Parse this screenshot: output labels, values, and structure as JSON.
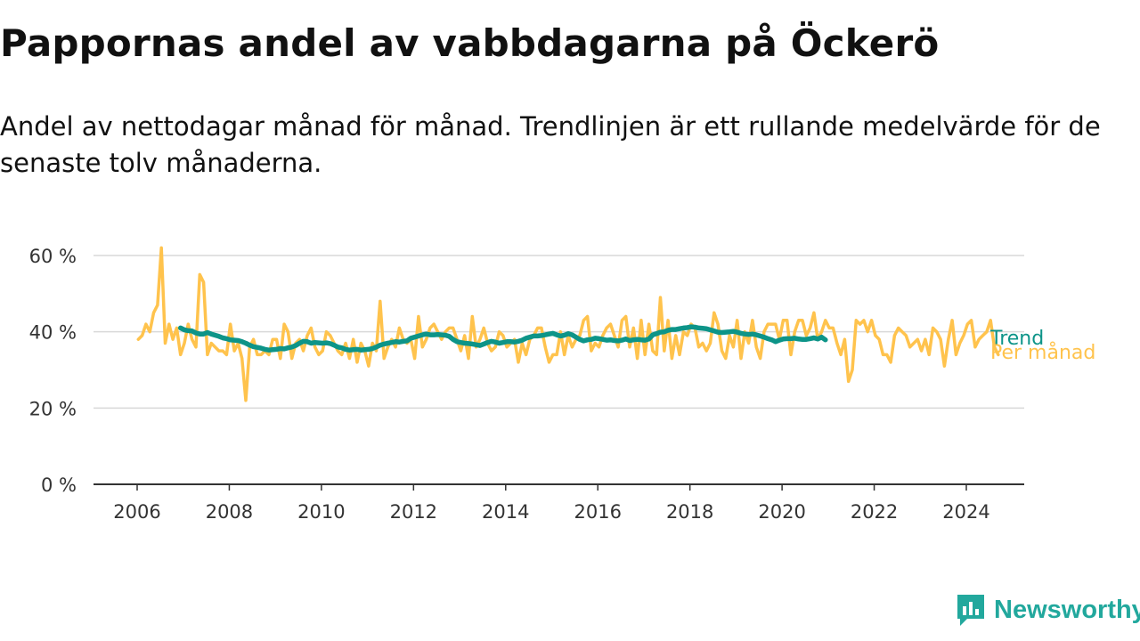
{
  "header": {
    "title": "Pappornas andel av vabbdagarna på Öckerö",
    "subtitle": "Andel av nettodagar månad för månad. Trendlinjen är ett rullande medelvärde för de senaste tolv månaderna."
  },
  "brand": {
    "name": "Newsworthy",
    "color": "#22a89d"
  },
  "chart_data": {
    "type": "line",
    "title": "Pappornas andel av vabbdagarna på Öckerö",
    "xlabel": "",
    "ylabel": "",
    "xlim": [
      "2006-01",
      "2024-12"
    ],
    "ylim": [
      0,
      60
    ],
    "x_ticks": [
      "2006",
      "2008",
      "2010",
      "2012",
      "2014",
      "2016",
      "2018",
      "2020",
      "2022",
      "2024"
    ],
    "y_ticks": [
      "0 %",
      "20 %",
      "40 %",
      "60 %"
    ],
    "grid": "horizontal",
    "legend": "end-of-line labels",
    "series": [
      {
        "name": "Per månad",
        "color": "#ffc34d",
        "x_start": "2006-01",
        "step": "month",
        "values": [
          38,
          39,
          42,
          40,
          45,
          47,
          62,
          37,
          42,
          38,
          41,
          34,
          37,
          42,
          38,
          36,
          55,
          53,
          34,
          37,
          36,
          35,
          35,
          34,
          42,
          35,
          37,
          33,
          22,
          36,
          38,
          34,
          34,
          35,
          34,
          38,
          38,
          33,
          42,
          40,
          33,
          37,
          38,
          35,
          39,
          41,
          36,
          34,
          35,
          40,
          39,
          37,
          35,
          34,
          37,
          33,
          38,
          32,
          37,
          35,
          31,
          37,
          35,
          48,
          33,
          36,
          38,
          36,
          41,
          38,
          37,
          38,
          33,
          44,
          36,
          38,
          41,
          42,
          40,
          38,
          40,
          41,
          41,
          38,
          35,
          39,
          33,
          44,
          36,
          38,
          41,
          37,
          35,
          36,
          40,
          39,
          36,
          37,
          38,
          32,
          37,
          34,
          38,
          39,
          41,
          41,
          36,
          32,
          34,
          34,
          40,
          34,
          39,
          36,
          38,
          39,
          43,
          44,
          35,
          37,
          36,
          39,
          41,
          42,
          39,
          36,
          43,
          44,
          36,
          41,
          33,
          43,
          34,
          42,
          35,
          34,
          49,
          35,
          43,
          33,
          39,
          34,
          40,
          39,
          42,
          41,
          36,
          37,
          35,
          37,
          45,
          42,
          35,
          33,
          39,
          36,
          43,
          33,
          40,
          37,
          43,
          36,
          33,
          40,
          42,
          42,
          42,
          38,
          43,
          43,
          34,
          40,
          43,
          43,
          39,
          41,
          45,
          38,
          40,
          43,
          41,
          41,
          37,
          34,
          38,
          27,
          30,
          43,
          42,
          43,
          40,
          43,
          39,
          38,
          34,
          34,
          32,
          39,
          41,
          40,
          39,
          36,
          37,
          38,
          35,
          38,
          34,
          41,
          40,
          38,
          31,
          38,
          43,
          34,
          37,
          39,
          42,
          43,
          36,
          38,
          39,
          40,
          43,
          36,
          34
        ]
      },
      {
        "name": "Trend",
        "color": "#0d9488",
        "x_start": "2006-12",
        "step": "month",
        "values": [
          41,
          40.5,
          40.3,
          40.2,
          39.7,
          39.4,
          39.4,
          39.8,
          39.4,
          39.1,
          38.8,
          38.4,
          38.2,
          37.9,
          37.8,
          37.7,
          37.4,
          37.0,
          36.5,
          36.1,
          35.9,
          35.7,
          35.4,
          35.2,
          35.3,
          35.4,
          35.6,
          35.5,
          35.8,
          36.0,
          36.4,
          37.0,
          37.5,
          37.4,
          37.0,
          37.2,
          37.1,
          37.0,
          37.1,
          36.9,
          36.5,
          36.0,
          35.8,
          35.4,
          35.2,
          35.3,
          35.4,
          35.2,
          35.3,
          35.4,
          35.6,
          36.0,
          36.5,
          36.8,
          37.0,
          37.2,
          37.4,
          37.3,
          37.5,
          37.6,
          38.3,
          38.6,
          38.9,
          39.2,
          39.4,
          39.2,
          39.2,
          39.3,
          39.2,
          39.1,
          38.8,
          38.0,
          37.4,
          37.2,
          37.0,
          36.9,
          36.8,
          36.6,
          36.4,
          36.8,
          37.2,
          37.5,
          37.3,
          37.0,
          37.2,
          37.4,
          37.4,
          37.3,
          37.5,
          37.8,
          38.3,
          38.6,
          38.9,
          38.9,
          39.0,
          39.2,
          39.4,
          39.6,
          39.2,
          38.9,
          39.1,
          39.5,
          39.2,
          38.6,
          38.0,
          37.6,
          37.9,
          38.0,
          38.3,
          38.2,
          38.0,
          37.8,
          37.9,
          37.7,
          37.6,
          37.8,
          38.1,
          37.7,
          37.9,
          38.0,
          37.9,
          37.8,
          38.1,
          39.2,
          39.5,
          39.9,
          40.0,
          40.4,
          40.6,
          40.6,
          40.8,
          41.0,
          41.1,
          41.3,
          41.2,
          41.0,
          40.9,
          40.8,
          40.5,
          40.2,
          39.9,
          39.8,
          39.9,
          40.0,
          40.1,
          39.9,
          39.6,
          39.4,
          39.3,
          39.4,
          39.2,
          38.9,
          38.6,
          38.2,
          37.9,
          37.4,
          37.8,
          38.1,
          38.2,
          38.2,
          38.3,
          38.1,
          38.0,
          38.0,
          38.2,
          38.4,
          38.1,
          38.6,
          37.9
        ]
      }
    ]
  }
}
